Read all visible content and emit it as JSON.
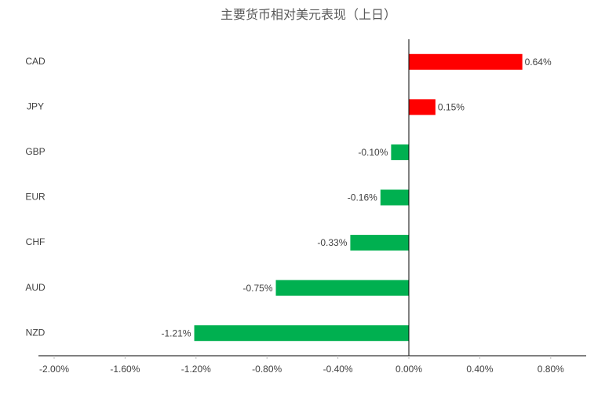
{
  "chart_data": {
    "type": "hbar",
    "title": "主要货币相对美元表现（上日）",
    "categories": [
      "CAD",
      "JPY",
      "GBP",
      "EUR",
      "CHF",
      "AUD",
      "NZD"
    ],
    "values": [
      0.64,
      0.15,
      -0.1,
      -0.16,
      -0.33,
      -0.75,
      -1.21
    ],
    "value_labels": [
      "0.64%",
      "0.15%",
      "-0.10%",
      "-0.16%",
      "-0.33%",
      "-0.75%",
      "-1.21%"
    ],
    "colors": [
      "#ff0000",
      "#ff0000",
      "#00b050",
      "#00b050",
      "#00b050",
      "#00b050",
      "#00b050"
    ],
    "xlim": [
      -2,
      1
    ],
    "xticks": [
      {
        "value": -2,
        "label": "-2.00%"
      },
      {
        "value": -1.6,
        "label": "-1.60%"
      },
      {
        "value": -1.2,
        "label": "-1.20%"
      },
      {
        "value": -0.8,
        "label": "-0.80%"
      },
      {
        "value": -0.4,
        "label": "-0.40%"
      },
      {
        "value": 0,
        "label": "0.00%"
      },
      {
        "value": 0.4,
        "label": "0.40%"
      },
      {
        "value": 0.8,
        "label": "0.80%"
      }
    ],
    "grid": false
  }
}
